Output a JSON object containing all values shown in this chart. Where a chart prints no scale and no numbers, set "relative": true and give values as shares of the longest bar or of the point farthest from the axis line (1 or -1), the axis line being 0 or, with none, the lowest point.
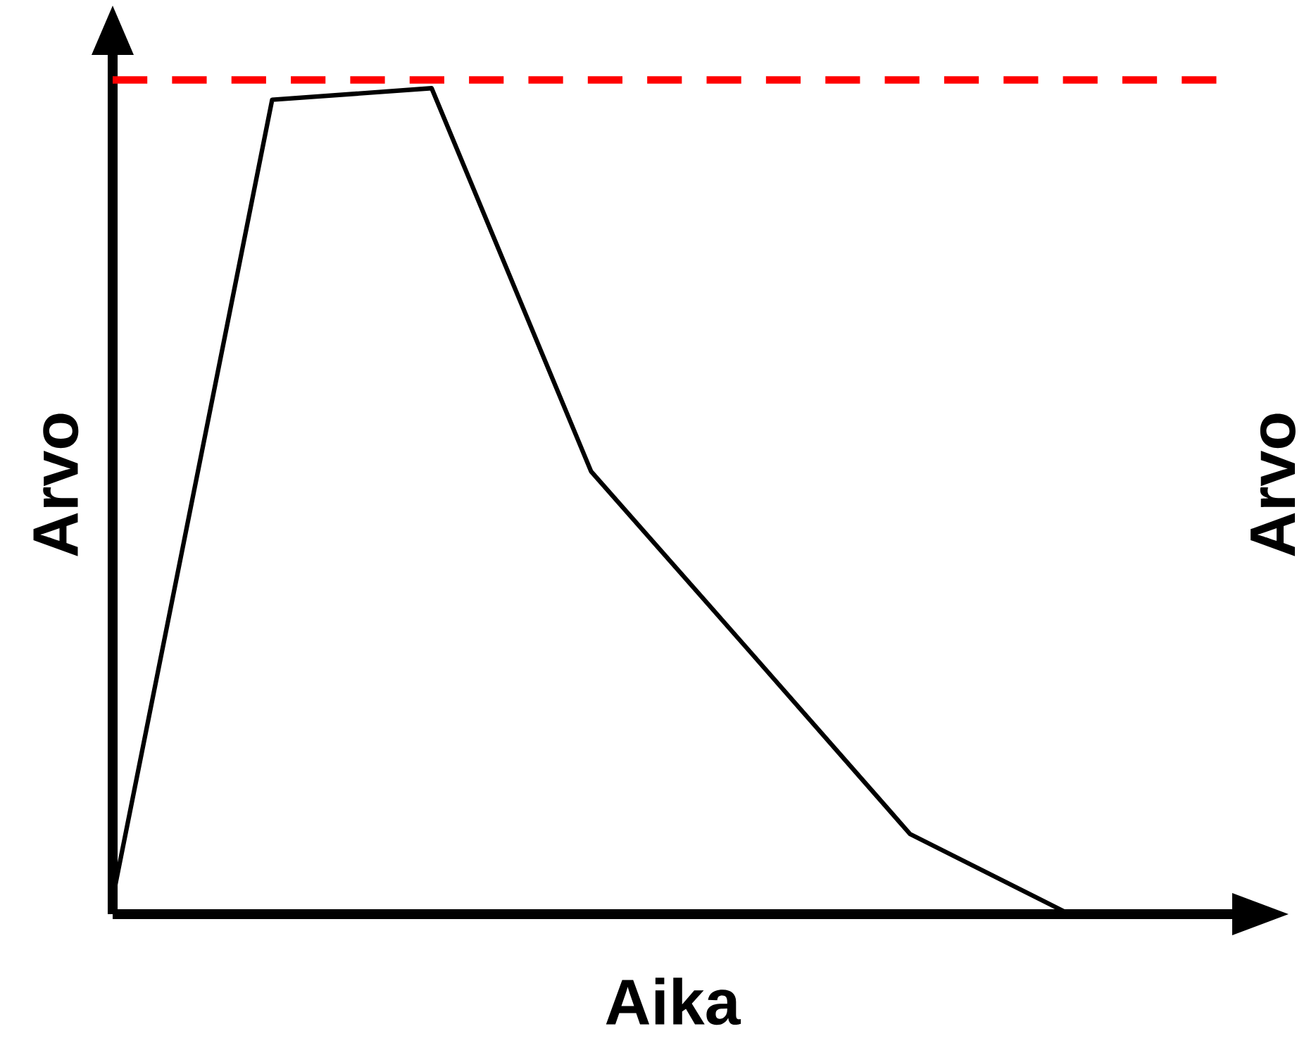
{
  "chart_data": {
    "type": "line",
    "relative": true,
    "xlabel": "Aika",
    "ylabel": "Arvo",
    "y2label": "Arvo",
    "categories": [
      null,
      null,
      null,
      null,
      null,
      null,
      null
    ],
    "series": [
      {
        "color": "#000000",
        "values": [
          0.019,
          0.986,
          1,
          0.536,
          0.317,
          0.097,
          0
        ]
      }
    ],
    "ref_lines": [
      {
        "axis": "y",
        "value": 1.01,
        "color": "#ff0000",
        "line_style": "dashed"
      }
    ]
  }
}
